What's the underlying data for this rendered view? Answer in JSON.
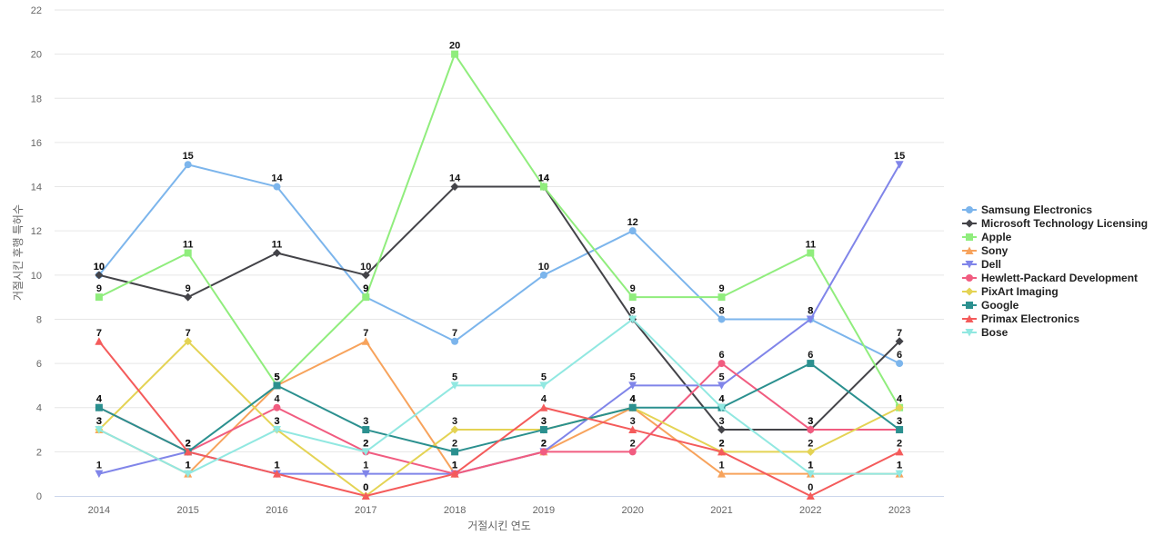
{
  "chart_data": {
    "type": "line",
    "xlabel": "거절시킨 연도",
    "ylabel": "거절시킨 후행 특허수",
    "ylim": [
      0,
      22
    ],
    "yticks": [
      0,
      2,
      4,
      6,
      8,
      10,
      12,
      14,
      16,
      18,
      20,
      22
    ],
    "grid": true,
    "legend_position": "right",
    "categories": [
      "2014",
      "2015",
      "2016",
      "2017",
      "2018",
      "2019",
      "2020",
      "2021",
      "2022",
      "2023"
    ],
    "series": [
      {
        "name": "Samsung Electronics",
        "color": "#7cb5ec",
        "marker": "circle",
        "values": [
          10,
          15,
          14,
          9,
          7,
          10,
          12,
          8,
          8,
          6
        ]
      },
      {
        "name": "Microsoft Technology Licensing",
        "color": "#434348",
        "marker": "diamond",
        "values": [
          10,
          9,
          11,
          10,
          14,
          14,
          8,
          3,
          3,
          7
        ]
      },
      {
        "name": "Apple",
        "color": "#90ed7d",
        "marker": "square",
        "values": [
          9,
          11,
          5,
          9,
          20,
          14,
          9,
          9,
          11,
          4
        ]
      },
      {
        "name": "Sony",
        "color": "#f7a35c",
        "marker": "triangle",
        "values": [
          3,
          1,
          5,
          7,
          1,
          2,
          4,
          1,
          1,
          1
        ]
      },
      {
        "name": "Dell",
        "color": "#8085e9",
        "marker": "triangle-down",
        "values": [
          1,
          2,
          1,
          1,
          1,
          2,
          5,
          5,
          8,
          15
        ]
      },
      {
        "name": "Hewlett-Packard Development",
        "color": "#f15c80",
        "marker": "circle",
        "values": [
          4,
          2,
          4,
          2,
          1,
          2,
          2,
          6,
          3,
          3
        ]
      },
      {
        "name": "PixArt Imaging",
        "color": "#e4d354",
        "marker": "diamond",
        "values": [
          3,
          7,
          3,
          0,
          3,
          3,
          4,
          2,
          2,
          4
        ]
      },
      {
        "name": "Google",
        "color": "#2b908f",
        "marker": "square",
        "values": [
          4,
          2,
          5,
          3,
          2,
          3,
          4,
          4,
          6,
          3
        ]
      },
      {
        "name": "Primax Electronics",
        "color": "#f45b5b",
        "marker": "triangle",
        "values": [
          7,
          2,
          1,
          0,
          1,
          4,
          3,
          2,
          0,
          2
        ]
      },
      {
        "name": "Bose",
        "color": "#91e8e1",
        "marker": "triangle-down",
        "values": [
          3,
          1,
          3,
          2,
          5,
          5,
          8,
          4,
          1,
          1
        ]
      }
    ]
  }
}
